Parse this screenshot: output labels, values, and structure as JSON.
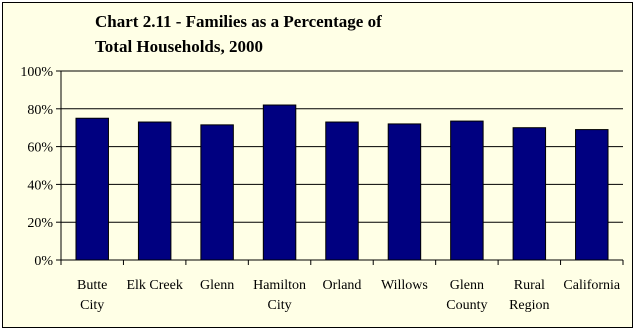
{
  "chart_data": {
    "type": "bar",
    "title_lines": [
      "Chart 2.11 - Families as a Percentage of",
      "Total Households, 2000"
    ],
    "categories": [
      [
        "Butte",
        "City"
      ],
      [
        "Elk Creek"
      ],
      [
        "Glenn"
      ],
      [
        "Hamilton",
        "City"
      ],
      [
        "Orland"
      ],
      [
        "Willows"
      ],
      [
        "Glenn",
        "County"
      ],
      [
        "Rural",
        "Region"
      ],
      [
        "California"
      ]
    ],
    "values": [
      75,
      73,
      71.5,
      82,
      73,
      72,
      73.5,
      70,
      69
    ],
    "y_ticks": [
      "0%",
      "20%",
      "40%",
      "60%",
      "80%",
      "100%"
    ],
    "ylim": [
      0,
      100
    ],
    "grid": true,
    "legend": "none",
    "colors": {
      "bar_fill": "#000080",
      "plot_background": "#ffffe6",
      "gridline": "#000000"
    }
  }
}
